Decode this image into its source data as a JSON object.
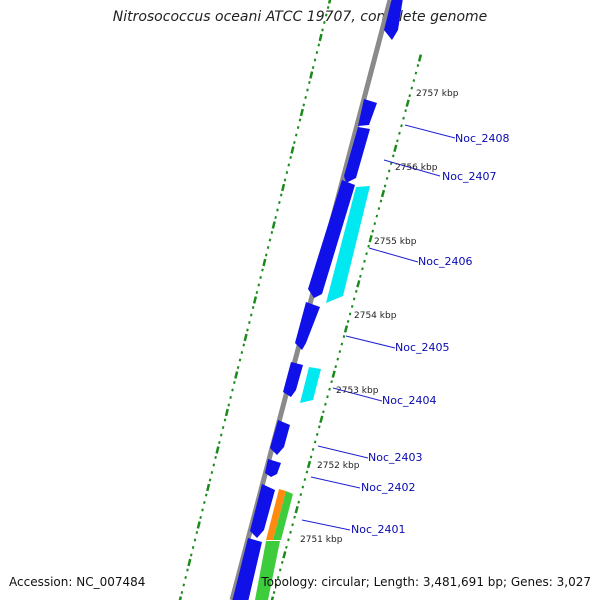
{
  "title": "Nitrosococcus oceani ATCC 19707, complete genome",
  "accession": "Accession: NC_007484",
  "summary": "Topology: circular; Length: 3,481,691 bp; Genes: 3,027",
  "colors": {
    "backbone": "#8a8a8a",
    "gene_forward": "#1010e8",
    "gene_reverse": "#00e8f0",
    "gene_orange": "#ff8a10",
    "gene_green": "#3ccc3c",
    "ticks": "#1a8a1a",
    "label_line": "#2020d0"
  },
  "kbp_labels": [
    "2757 kbp",
    "2756 kbp",
    "2755 kbp",
    "2754 kbp",
    "2753 kbp",
    "2752 kbp",
    "2751 kbp"
  ],
  "gene_labels": [
    "Noc_2408",
    "Noc_2407",
    "Noc_2406",
    "Noc_2405",
    "Noc_2404",
    "Noc_2403",
    "Noc_2402",
    "Noc_2401"
  ]
}
